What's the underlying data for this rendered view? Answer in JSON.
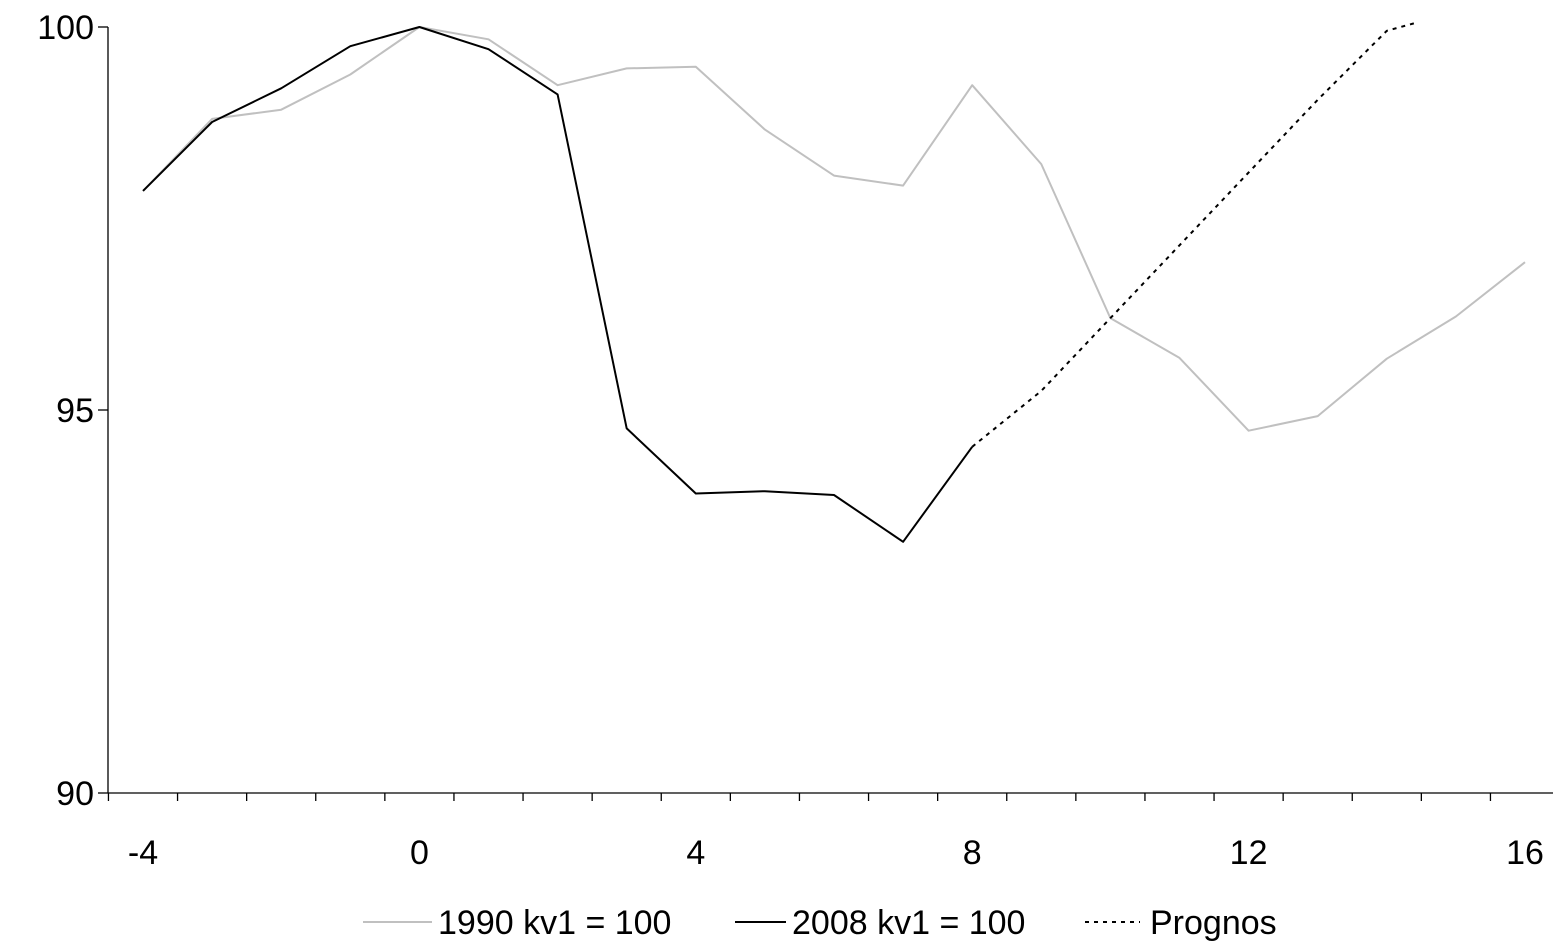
{
  "chart_data": {
    "type": "line",
    "title": "",
    "xlabel": "",
    "ylabel": "",
    "xlim": [
      -4,
      16
    ],
    "ylim": [
      90,
      100
    ],
    "x_ticks": [
      -4,
      0,
      4,
      8,
      12,
      16
    ],
    "y_ticks": [
      90,
      95,
      100
    ],
    "x_tick_labels": [
      "-4",
      "0",
      "4",
      "8",
      "12",
      "16"
    ],
    "y_tick_labels": [
      "90",
      "95",
      "100"
    ],
    "grid": false,
    "legend_position": "bottom",
    "series": [
      {
        "name": "1990 kv1 = 100",
        "color": "#c0c0c0",
        "style": "solid",
        "x": [
          -4,
          -3,
          -2,
          -1,
          0,
          1,
          2,
          3,
          4,
          5,
          6,
          7,
          8,
          9,
          10,
          11,
          12,
          13,
          14,
          15,
          16
        ],
        "y": [
          97.86,
          98.8,
          98.92,
          99.38,
          100.0,
          99.84,
          99.24,
          99.46,
          99.48,
          98.66,
          98.06,
          97.93,
          99.24,
          98.21,
          96.2,
          95.68,
          94.73,
          94.92,
          95.67,
          96.22,
          96.93
        ]
      },
      {
        "name": "2008 kv1 = 100",
        "color": "#000000",
        "style": "solid",
        "x": [
          -4,
          -3,
          -2,
          -1,
          0,
          1,
          2,
          3,
          4,
          5,
          6,
          7,
          8
        ],
        "y": [
          97.86,
          98.76,
          99.2,
          99.75,
          100.0,
          99.71,
          99.12,
          94.76,
          93.91,
          93.94,
          93.89,
          93.28,
          94.52
        ]
      },
      {
        "name": "Prognos",
        "color": "#000000",
        "style": "dotted",
        "x": [
          8,
          9,
          10,
          11,
          12,
          13,
          14,
          14.4
        ],
        "y": [
          94.52,
          95.25,
          96.2,
          97.15,
          98.1,
          99.05,
          99.95,
          100.05
        ]
      }
    ]
  }
}
